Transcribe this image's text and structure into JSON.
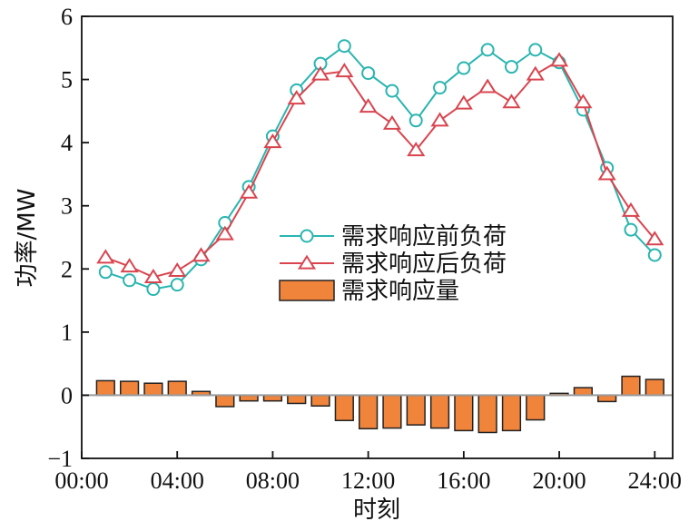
{
  "chart_data": {
    "type": "bar",
    "xlabel": "时刻",
    "ylabel": "功率/MW",
    "xlim": [
      0,
      24.75
    ],
    "ylim": [
      -1,
      6
    ],
    "x_ticks": [
      {
        "value": 0,
        "label": "00:00"
      },
      {
        "value": 4,
        "label": "04:00"
      },
      {
        "value": 8,
        "label": "08:00"
      },
      {
        "value": 12,
        "label": "12:00"
      },
      {
        "value": 16,
        "label": "16:00"
      },
      {
        "value": 20,
        "label": "20:00"
      },
      {
        "value": 24,
        "label": "24:00"
      }
    ],
    "y_ticks": [
      {
        "value": -1,
        "label": "−1"
      },
      {
        "value": 0,
        "label": "0"
      },
      {
        "value": 1,
        "label": "1"
      },
      {
        "value": 2,
        "label": "2"
      },
      {
        "value": 3,
        "label": "3"
      },
      {
        "value": 4,
        "label": "4"
      },
      {
        "value": 5,
        "label": "5"
      },
      {
        "value": 6,
        "label": "6"
      }
    ],
    "x": [
      1,
      2,
      3,
      4,
      5,
      6,
      7,
      8,
      9,
      10,
      11,
      12,
      13,
      14,
      15,
      16,
      17,
      18,
      19,
      20,
      21,
      22,
      23,
      24
    ],
    "legend_position": "center",
    "series": [
      {
        "name": "需求响应前负荷",
        "kind": "line",
        "marker": "circle",
        "color": "#2ab5b0",
        "values": [
          1.95,
          1.82,
          1.68,
          1.75,
          2.15,
          2.73,
          3.3,
          4.1,
          4.83,
          5.25,
          5.53,
          5.1,
          4.82,
          4.35,
          4.87,
          5.18,
          5.47,
          5.2,
          5.47,
          5.27,
          4.52,
          3.6,
          2.62,
          2.22
        ]
      },
      {
        "name": "需求响应后负荷",
        "kind": "line",
        "marker": "triangle",
        "color": "#d9454f",
        "values": [
          2.18,
          2.04,
          1.87,
          1.97,
          2.21,
          2.55,
          3.21,
          4.01,
          4.7,
          5.08,
          5.13,
          4.57,
          4.3,
          3.88,
          4.35,
          4.62,
          4.88,
          4.64,
          5.08,
          5.3,
          4.64,
          3.5,
          2.92,
          2.47
        ]
      },
      {
        "name": "需求响应量",
        "kind": "bar",
        "color": "#f0843a",
        "edge_color": "#222222",
        "values": [
          0.23,
          0.22,
          0.19,
          0.22,
          0.06,
          -0.18,
          -0.09,
          -0.09,
          -0.13,
          -0.17,
          -0.4,
          -0.53,
          -0.52,
          -0.47,
          -0.52,
          -0.56,
          -0.59,
          -0.56,
          -0.39,
          0.03,
          0.12,
          -0.1,
          0.3,
          0.25
        ]
      }
    ]
  }
}
